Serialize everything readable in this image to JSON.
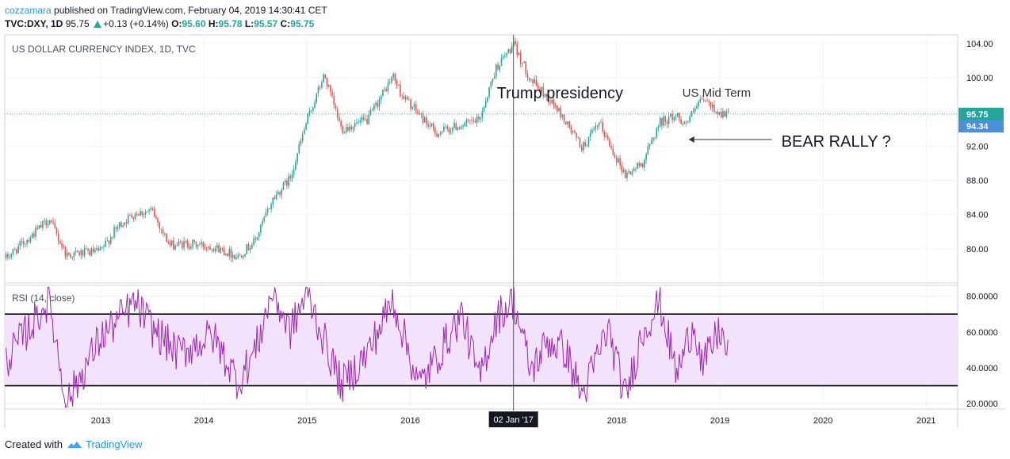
{
  "header": {
    "user": "cozzamara",
    "published": "published on TradingView.com, February 04, 2019 14:30:41 CET"
  },
  "ohlc": {
    "symbol": "TVC:DXY, 1D",
    "price": "95.75",
    "change": "+0.13 (+0.14%)",
    "o_label": "O:",
    "o": "95.60",
    "h_label": "H:",
    "h": "95.78",
    "l_label": "L:",
    "l": "95.57",
    "c_label": "C:",
    "c": "95.75"
  },
  "footer": {
    "created": "Created with",
    "brand": "TradingView",
    "logo_icon": "tradingview-logo-icon"
  },
  "colors": {
    "up": "#26a69a",
    "down": "#ef5350",
    "rsi": "#9c27b0",
    "rsi_band": "#f3e2fb",
    "last_price": "#26a69a",
    "marker_price": "#4a90d9",
    "grid": "#f0f3fa"
  },
  "chart_data": [
    {
      "type": "line",
      "title": "US DOLLAR CURRENCY INDEX, 1D, TVC",
      "style": "candlestick",
      "x": [
        "2012-02",
        "2012-06",
        "2012-07",
        "2012-09",
        "2013-01",
        "2013-03",
        "2013-05",
        "2013-07",
        "2013-09",
        "2013-11",
        "2014-02",
        "2014-05",
        "2014-07",
        "2014-09",
        "2014-11",
        "2015-01",
        "2015-03",
        "2015-05",
        "2015-08",
        "2015-11",
        "2015-12",
        "2016-04",
        "2016-06",
        "2016-09",
        "2016-11",
        "2017-01",
        "2017-03",
        "2017-06",
        "2017-09",
        "2017-11",
        "2018-02",
        "2018-04",
        "2018-06",
        "2018-08",
        "2018-09",
        "2018-11",
        "2019-01",
        "2019-02"
      ],
      "y": [
        78.9,
        82.5,
        83.5,
        79.3,
        79.7,
        82.6,
        84.2,
        84.4,
        80.4,
        80.6,
        80.3,
        79.1,
        81.0,
        85.8,
        88.2,
        95.0,
        100.3,
        94.0,
        95.0,
        100.2,
        98.0,
        93.5,
        94.2,
        95.0,
        101.2,
        103.8,
        99.8,
        96.5,
        91.8,
        94.6,
        88.6,
        90.0,
        94.8,
        95.6,
        94.6,
        97.5,
        95.8,
        95.75
      ],
      "ylim": [
        76,
        105
      ],
      "yticks": [
        "104.00",
        "100.00",
        "96.00",
        "92.00",
        "88.00",
        "84.00",
        "80.00"
      ],
      "ytick_values": [
        104,
        100,
        96,
        92,
        88,
        84,
        80
      ],
      "last_price": "95.75",
      "last_price_value": 95.75,
      "marker_price": "94.34",
      "marker_price_value": 94.34,
      "annotations": {
        "trump": "Trump presidency",
        "midterm": "US Mid Term",
        "bear": "BEAR RALLY ?"
      },
      "grid": true
    },
    {
      "type": "line",
      "title": "RSI (14, close)",
      "x": [
        "2012-02",
        "2012-07",
        "2012-09",
        "2013-01",
        "2013-05",
        "2013-07",
        "2013-10",
        "2014-02",
        "2014-05",
        "2014-07",
        "2014-09",
        "2014-11",
        "2015-01",
        "2015-03",
        "2015-05",
        "2015-08",
        "2015-11",
        "2016-02",
        "2016-04",
        "2016-07",
        "2016-09",
        "2016-11",
        "2017-01",
        "2017-03",
        "2017-05",
        "2017-07",
        "2017-09",
        "2017-12",
        "2018-02",
        "2018-04",
        "2018-06",
        "2018-08",
        "2018-10",
        "2018-11",
        "2019-01",
        "2019-02"
      ],
      "y": [
        44,
        78,
        20,
        57,
        76,
        62,
        48,
        58,
        32,
        50,
        83,
        60,
        82,
        55,
        30,
        48,
        78,
        30,
        45,
        70,
        33,
        68,
        78,
        38,
        55,
        50,
        24,
        62,
        23,
        60,
        77,
        36,
        66,
        40,
        62,
        45
      ],
      "ylim": [
        17,
        86
      ],
      "yticks": [
        "80.0000",
        "60.0000",
        "40.0000",
        "20.0000"
      ],
      "ytick_values": [
        80,
        60,
        40,
        20
      ],
      "bands": [
        30,
        70
      ],
      "grid": true
    }
  ],
  "xaxis": {
    "ticks": [
      "2013",
      "2014",
      "2015",
      "2016",
      "2018",
      "2019",
      "2020",
      "2021"
    ],
    "tick_dates": [
      "2013-01",
      "2014-01",
      "2015-01",
      "2016-01",
      "2018-01",
      "2019-01",
      "2020-01",
      "2021-01"
    ],
    "cursor_label": "02 Jan '17",
    "cursor_date": "2017-01"
  }
}
